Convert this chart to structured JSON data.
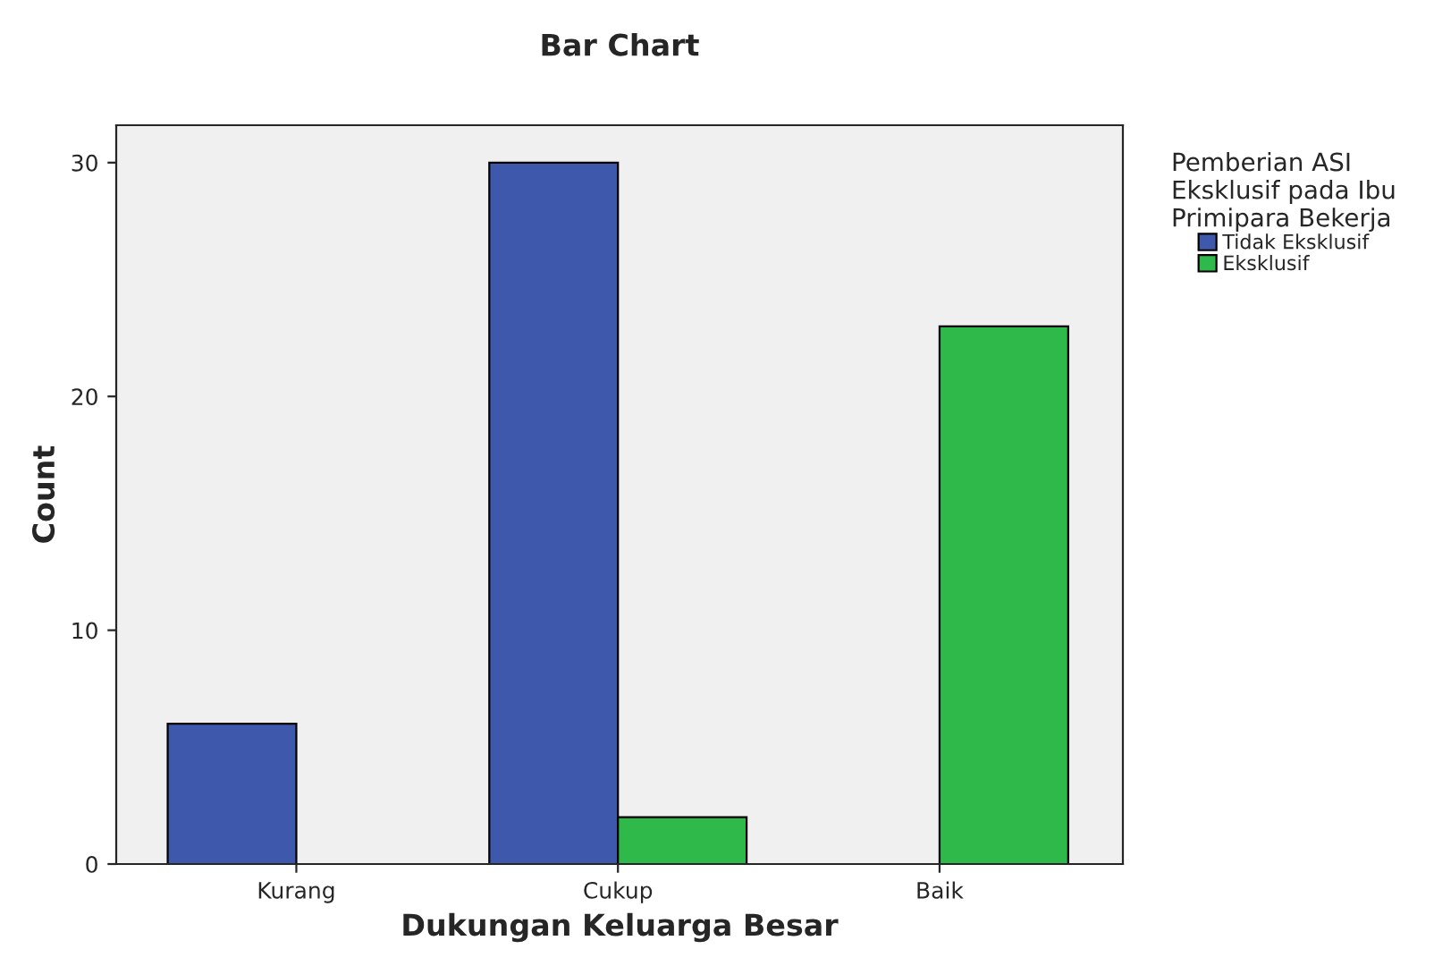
{
  "chart_data": {
    "type": "bar",
    "title": "Bar Chart",
    "xlabel": "Dukungan Keluarga Besar",
    "ylabel": "Count",
    "categories": [
      "Kurang",
      "Cukup",
      "Baik"
    ],
    "series": [
      {
        "name": "Tidak Eksklusif",
        "color": "#3e58ac",
        "values": [
          6,
          30,
          0
        ]
      },
      {
        "name": "Eksklusif",
        "color": "#2eb94a",
        "values": [
          0,
          2,
          23
        ]
      }
    ],
    "legend_title": "Pemberian ASI\nEksklusif pada Ibu\nPrimipara Bekerja",
    "legend": "top right",
    "ylim": [
      0,
      31.6
    ],
    "yticks": [
      0,
      10,
      20,
      30
    ],
    "grid": false
  }
}
